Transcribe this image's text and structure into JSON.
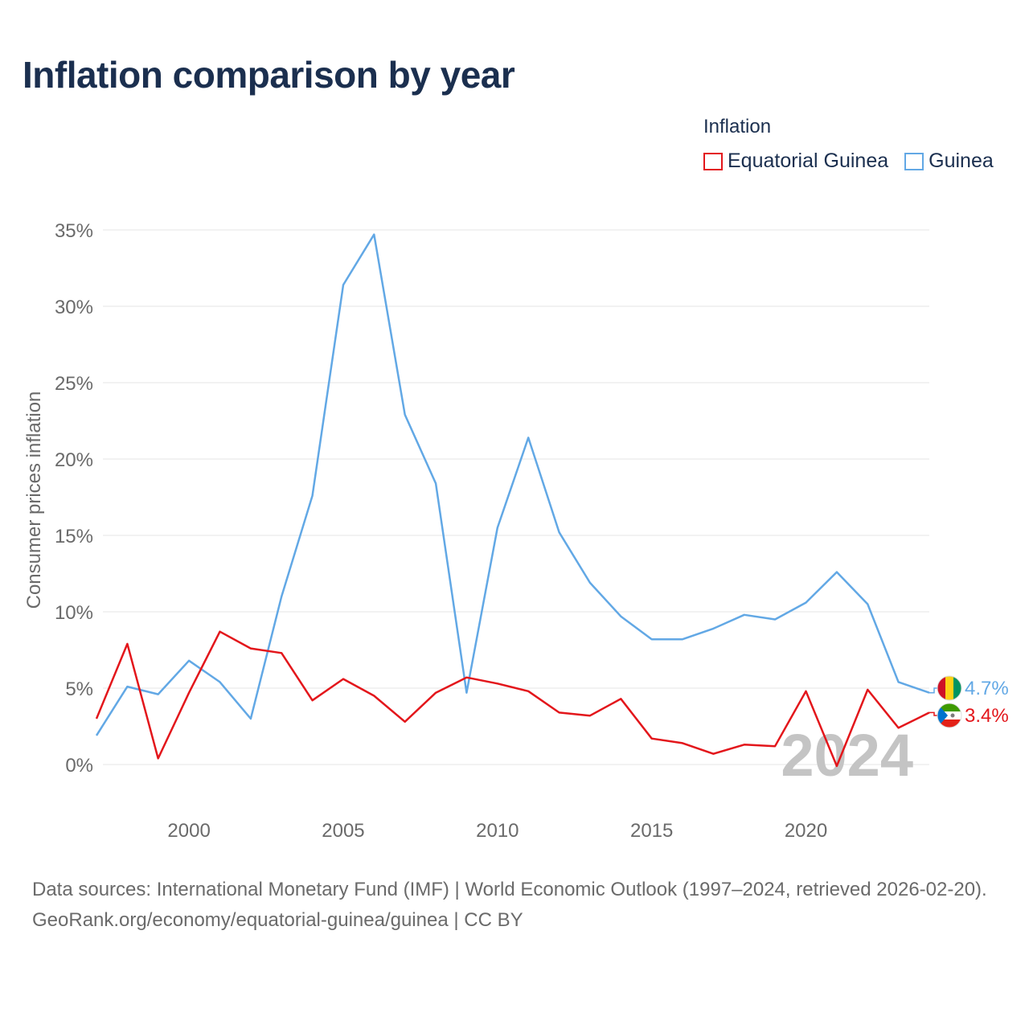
{
  "title": "Inflation comparison by year",
  "legend": {
    "title": "Inflation",
    "items": [
      {
        "label": "Equatorial Guinea",
        "color": "#e3161b"
      },
      {
        "label": "Guinea",
        "color": "#62a8e5"
      }
    ]
  },
  "footer": {
    "sources": "Data sources: International Monetary Fund (IMF) | World Economic Outlook (1997–2024, retrieved 2026-02-20).",
    "attribution": "GeoRank.org/economy/equatorial-guinea/guinea | CC BY"
  },
  "chart_data": {
    "type": "line",
    "title": "Inflation comparison by year",
    "xlabel": "",
    "ylabel": "Consumer prices inflation",
    "x": [
      1997,
      1998,
      1999,
      2000,
      2001,
      2002,
      2003,
      2004,
      2005,
      2006,
      2007,
      2008,
      2009,
      2010,
      2011,
      2012,
      2013,
      2014,
      2015,
      2016,
      2017,
      2018,
      2019,
      2020,
      2021,
      2022,
      2023,
      2024
    ],
    "series": [
      {
        "name": "Guinea",
        "color": "#62a8e5",
        "values": [
          1.9,
          5.1,
          4.6,
          6.8,
          5.4,
          3.0,
          11.0,
          17.6,
          31.4,
          34.7,
          22.9,
          18.4,
          4.7,
          15.5,
          21.4,
          15.2,
          11.9,
          9.7,
          8.2,
          8.2,
          8.9,
          9.8,
          9.5,
          10.6,
          12.6,
          10.5,
          5.4,
          4.7
        ],
        "end_label": "4.7%"
      },
      {
        "name": "Equatorial Guinea",
        "color": "#e3161b",
        "values": [
          3.0,
          7.9,
          0.4,
          4.7,
          8.7,
          7.6,
          7.3,
          4.2,
          5.6,
          4.5,
          2.8,
          4.7,
          5.7,
          5.3,
          4.8,
          3.4,
          3.2,
          4.3,
          1.7,
          1.4,
          0.7,
          1.3,
          1.2,
          4.8,
          -0.1,
          4.9,
          2.4,
          3.4
        ],
        "end_label": "3.4%"
      }
    ],
    "ylim": [
      -2,
      37
    ],
    "xlim": [
      1997,
      2024
    ],
    "yticks": [
      0,
      5,
      10,
      15,
      20,
      25,
      30,
      35
    ],
    "ytick_labels": [
      "0%",
      "5%",
      "10%",
      "15%",
      "20%",
      "25%",
      "30%",
      "35%"
    ],
    "xticks": [
      2000,
      2005,
      2010,
      2015,
      2020
    ],
    "xtick_labels": [
      "2000",
      "2005",
      "2010",
      "2015",
      "2020"
    ],
    "grid": true,
    "year_watermark": "2024"
  }
}
